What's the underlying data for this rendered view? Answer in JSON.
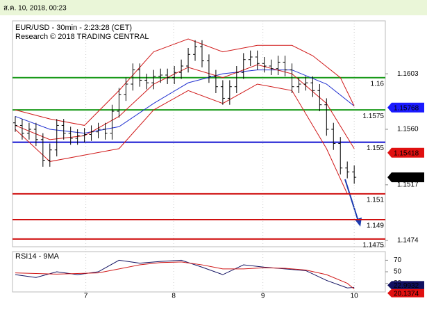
{
  "chart_data": {
    "type": "candlestick",
    "timestamp": "ส.ค. 10, 2018, 00:23",
    "title": "EUR/USD - 30min - 2:23:28 (CET)",
    "subtitle": "Research © 2018 TRADING CENTRAL",
    "color": "#000000",
    "ylim": [
      1.1469,
      1.1644
    ],
    "yticks": [
      1.1603,
      {
        "value": 1.156,
        "label": "1.1560"
      },
      1.1517,
      1.1474
    ],
    "xlim": [
      -0.4,
      53.5
    ],
    "xticks": [
      {
        "value": 10.2,
        "label": "7"
      },
      {
        "value": 22.9,
        "label": "8"
      },
      {
        "value": 35.8,
        "label": "9"
      },
      {
        "value": 49,
        "label": "10"
      }
    ],
    "open": [
      1.1565,
      1.1563,
      1.1557,
      1.156,
      1.1552,
      1.1536,
      1.1544,
      1.1563,
      1.1557,
      1.1553,
      1.1555,
      1.1556,
      1.1558,
      1.156,
      1.1557,
      1.1574,
      1.1587,
      1.1595,
      1.1606,
      1.1598,
      1.1596,
      1.1601,
      1.1602,
      1.16,
      1.1604,
      1.1609,
      1.1618,
      1.1624,
      1.1613,
      1.1601,
      1.1593,
      1.1584,
      1.1593,
      1.1604,
      1.1614,
      1.1616,
      1.1611,
      1.1609,
      1.1607,
      1.1612,
      1.1606,
      1.1593,
      1.1595,
      1.1596,
      1.159,
      1.1579,
      1.156,
      1.1549,
      1.153,
      1.1527
    ],
    "high": [
      1.157,
      1.1568,
      1.1565,
      1.1565,
      1.1557,
      1.1549,
      1.1568,
      1.1568,
      1.1562,
      1.156,
      1.1561,
      1.1563,
      1.1565,
      1.1565,
      1.1579,
      1.1592,
      1.16,
      1.1611,
      1.1611,
      1.1603,
      1.1606,
      1.1607,
      1.1607,
      1.1609,
      1.1614,
      1.1623,
      1.1629,
      1.1629,
      1.1618,
      1.1606,
      1.1598,
      1.1598,
      1.1609,
      1.1619,
      1.1621,
      1.1621,
      1.1616,
      1.1614,
      1.1617,
      1.1617,
      1.1611,
      1.16,
      1.1601,
      1.1601,
      1.1595,
      1.1584,
      1.1565,
      1.1554,
      1.1535,
      1.1532
    ],
    "low": [
      1.1558,
      1.1552,
      1.1552,
      1.1547,
      1.1531,
      1.1531,
      1.1539,
      1.1552,
      1.1548,
      1.1548,
      1.155,
      1.1551,
      1.1553,
      1.1552,
      1.1552,
      1.1569,
      1.1582,
      1.159,
      1.1593,
      1.1591,
      1.1591,
      1.1596,
      1.1595,
      1.1595,
      1.1599,
      1.1604,
      1.1613,
      1.1608,
      1.1596,
      1.1588,
      1.1579,
      1.1579,
      1.1588,
      1.1599,
      1.1609,
      1.1606,
      1.1604,
      1.1602,
      1.1602,
      1.1601,
      1.1588,
      1.1588,
      1.159,
      1.1585,
      1.1574,
      1.1555,
      1.1544,
      1.1525,
      1.1522,
      1.15178
    ],
    "close": [
      1.1563,
      1.1557,
      1.156,
      1.1552,
      1.1536,
      1.1544,
      1.1563,
      1.1557,
      1.1553,
      1.1555,
      1.1556,
      1.1558,
      1.156,
      1.1557,
      1.1574,
      1.1587,
      1.1595,
      1.1606,
      1.1598,
      1.1596,
      1.1601,
      1.1602,
      1.16,
      1.1604,
      1.1609,
      1.1618,
      1.1624,
      1.1613,
      1.1601,
      1.1593,
      1.1584,
      1.1593,
      1.1604,
      1.1614,
      1.1616,
      1.1611,
      1.1609,
      1.1607,
      1.1612,
      1.1606,
      1.1593,
      1.1595,
      1.1596,
      1.159,
      1.1579,
      1.156,
      1.1549,
      1.153,
      1.1527,
      1.15228
    ],
    "overlays": [
      {
        "color": "#1f2fd0",
        "x": [
          0,
          5,
          10,
          15,
          20,
          25,
          30,
          35,
          40,
          45,
          49
        ],
        "values": [
          1.157,
          1.156,
          1.1557,
          1.1562,
          1.158,
          1.1596,
          1.1603,
          1.1606,
          1.1606,
          1.1595,
          1.1578
        ]
      },
      {
        "color": "#d01818",
        "x": [
          0,
          5,
          10,
          15,
          20,
          25,
          30,
          35,
          40,
          45,
          49
        ],
        "values": [
          1.1563,
          1.1552,
          1.1555,
          1.157,
          1.1595,
          1.1608,
          1.16,
          1.161,
          1.1603,
          1.158,
          1.1545
        ]
      },
      {
        "color": "#d01818",
        "x": [
          0,
          5,
          10,
          15,
          20,
          25,
          30,
          35,
          40,
          43,
          47,
          49
        ],
        "values": [
          1.1575,
          1.1568,
          1.1563,
          1.159,
          1.162,
          1.163,
          1.162,
          1.1625,
          1.1625,
          1.1617,
          1.16,
          1.1578
        ]
      },
      {
        "color": "#d01818",
        "x": [
          0,
          5,
          10,
          15,
          20,
          25,
          30,
          35,
          40,
          45,
          48
        ],
        "values": [
          1.156,
          1.1535,
          1.154,
          1.1545,
          1.1575,
          1.159,
          1.158,
          1.1595,
          1.159,
          1.1545,
          1.151
        ]
      }
    ],
    "levels": [
      {
        "value": 1.16,
        "color": "#1a9a1a"
      },
      {
        "value": 1.1575,
        "color": "#1a9a1a"
      },
      {
        "value": 1.155,
        "color": "#1010d0"
      },
      {
        "value": 1.151,
        "color": "#d01010"
      },
      {
        "value": 1.149,
        "color": "#d01010"
      },
      {
        "value": 1.1475,
        "color": "#d01010"
      }
    ],
    "price_tags": [
      {
        "value": 1.15768,
        "color": "#1a1aff"
      },
      {
        "value": 1.15418,
        "color": "#e01010"
      },
      {
        "value": 1.15228,
        "color": "#000000"
      }
    ],
    "rsi": {
      "title": "RSI14 - 9MA",
      "ylim": [
        15,
        85
      ],
      "yticks": [
        70,
        50,
        30
      ],
      "series": [
        {
          "color": "#101060",
          "x": [
            0,
            3,
            6,
            9,
            12,
            15,
            18,
            21,
            24,
            27,
            30,
            33,
            36,
            39,
            42,
            45,
            48,
            49
          ],
          "values": [
            45,
            40,
            50,
            45,
            50,
            70,
            65,
            68,
            70,
            58,
            45,
            62,
            58,
            55,
            52,
            35,
            22,
            23
          ]
        },
        {
          "color": "#d01818",
          "x": [
            0,
            6,
            12,
            15,
            18,
            21,
            24,
            27,
            30,
            33,
            36,
            39,
            42,
            45,
            48,
            49
          ],
          "values": [
            48,
            46,
            48,
            55,
            62,
            66,
            67,
            62,
            55,
            55,
            57,
            56,
            53,
            45,
            30,
            20
          ]
        }
      ],
      "tags": [
        {
          "value": 22.9932,
          "color": "#101060"
        },
        {
          "value": 20.1374,
          "color": "#e01010"
        }
      ]
    }
  }
}
